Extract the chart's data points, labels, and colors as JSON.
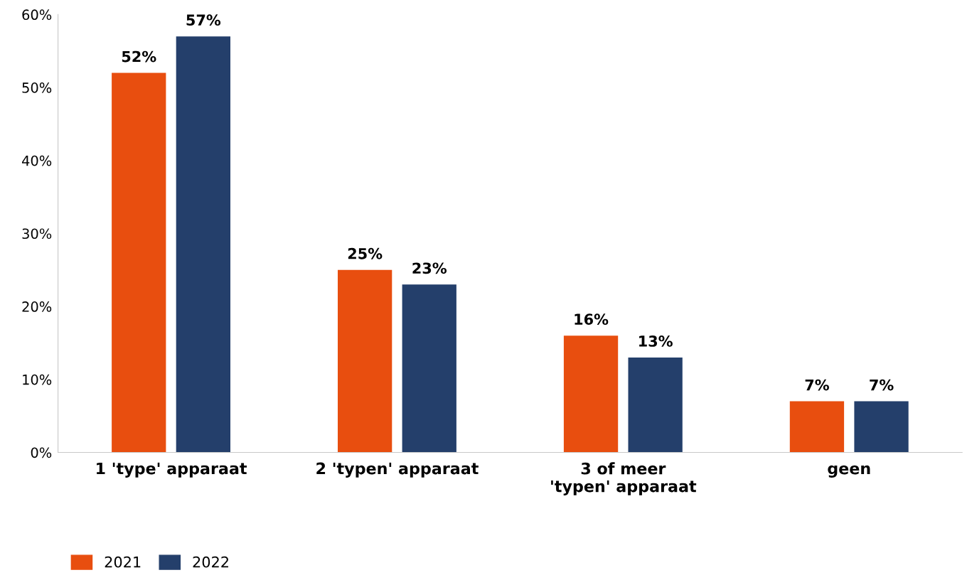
{
  "chart_data": {
    "type": "bar",
    "categories": [
      "1 'type' apparaat",
      "2 'typen' apparaat",
      "3 of meer\n'typen' apparaat",
      "geen"
    ],
    "series": [
      {
        "name": "2021",
        "color": "#e84e0f",
        "values": [
          52,
          25,
          16,
          7
        ],
        "value_labels": [
          "52%",
          "25%",
          "16%",
          "7%"
        ]
      },
      {
        "name": "2022",
        "color": "#243f6b",
        "values": [
          57,
          23,
          13,
          7
        ],
        "value_labels": [
          "57%",
          "23%",
          "13%",
          "7%"
        ]
      }
    ],
    "ylim": [
      0,
      60
    ],
    "yticks": [
      {
        "value": 0,
        "label": "0%"
      },
      {
        "value": 10,
        "label": "10%"
      },
      {
        "value": 20,
        "label": "20%"
      },
      {
        "value": 30,
        "label": "30%"
      },
      {
        "value": 40,
        "label": "40%"
      },
      {
        "value": 50,
        "label": "50%"
      },
      {
        "value": 60,
        "label": "60%"
      }
    ],
    "grid": false,
    "legend": "bottom left"
  }
}
